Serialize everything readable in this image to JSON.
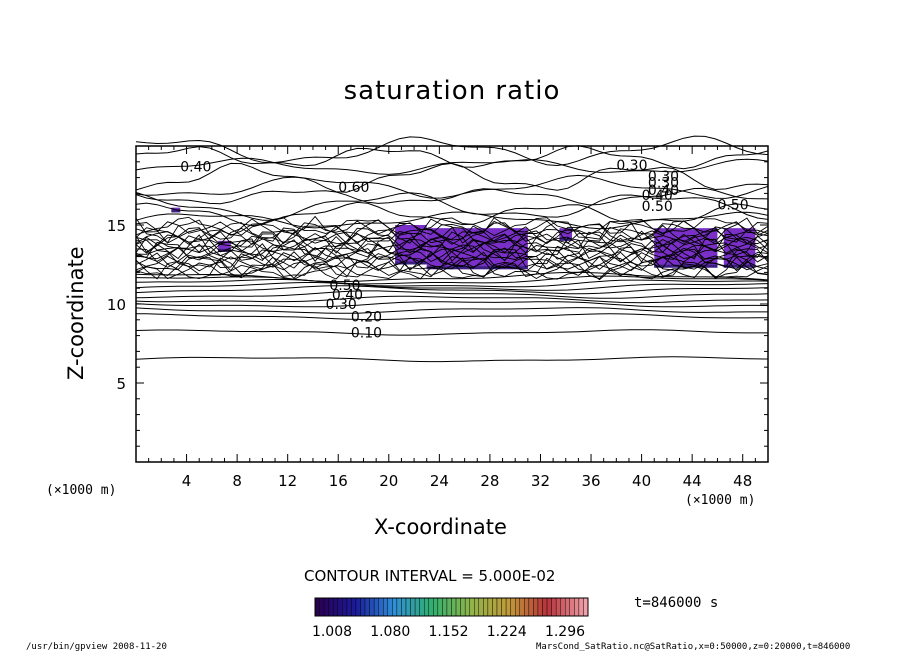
{
  "chart_data": {
    "type": "contour",
    "title": "saturation ratio",
    "xlabel": "X-coordinate",
    "ylabel": "Z-coordinate",
    "x_unit_label": "(×1000 m)",
    "x_unit_label_right": "(×1000 m)",
    "xlim": [
      0,
      50
    ],
    "ylim": [
      0,
      20
    ],
    "x_ticks": [
      4,
      8,
      12,
      16,
      20,
      24,
      28,
      32,
      36,
      40,
      44,
      48
    ],
    "y_ticks": [
      5,
      10,
      15
    ],
    "contour_interval_text": "CONTOUR INTERVAL = 5.000E-02",
    "contour_levels_shown": [
      "0.10",
      "0.20",
      "0.30",
      "0.40",
      "0.50",
      "0.60",
      "0.30",
      "0.40",
      "0.50",
      "0.40",
      "0.30",
      "0.30",
      "0.40",
      "0.50"
    ],
    "shaded_regions": [
      {
        "x_range": [
          20.5,
          23
        ],
        "z_range": [
          12.5,
          15
        ]
      },
      {
        "x_range": [
          23,
          31
        ],
        "z_range": [
          12.2,
          14.8
        ]
      },
      {
        "x_range": [
          33.5,
          34.5
        ],
        "z_range": [
          14,
          14.8
        ]
      },
      {
        "x_range": [
          41,
          46
        ],
        "z_range": [
          12.3,
          14.8
        ]
      },
      {
        "x_range": [
          46.5,
          49
        ],
        "z_range": [
          12.3,
          14.8
        ]
      },
      {
        "x_range": [
          6.5,
          7.5
        ],
        "z_range": [
          13.3,
          14
        ]
      },
      {
        "x_range": [
          2.8,
          3.5
        ],
        "z_range": [
          15.8,
          16.1
        ]
      }
    ],
    "colorbar": {
      "tick_labels": [
        "1.008",
        "1.080",
        "1.152",
        "1.224",
        "1.296"
      ],
      "colors": [
        "#2a0050",
        "#1a1a9a",
        "#2f8fd8",
        "#31b06e",
        "#8fb44a",
        "#c09a3a",
        "#b8323a",
        "#f0a0a8"
      ]
    },
    "time_text": "t=846000 s"
  },
  "footer": {
    "left": "/usr/bin/gpview   2008-11-20",
    "right": "MarsCond_SatRatio.nc@SatRatio,x=0:50000,z=0:20000,t=846000"
  },
  "colors": {
    "contour": "#000000",
    "shade": "#7a30c8",
    "shade_dark": "#3a2080"
  }
}
